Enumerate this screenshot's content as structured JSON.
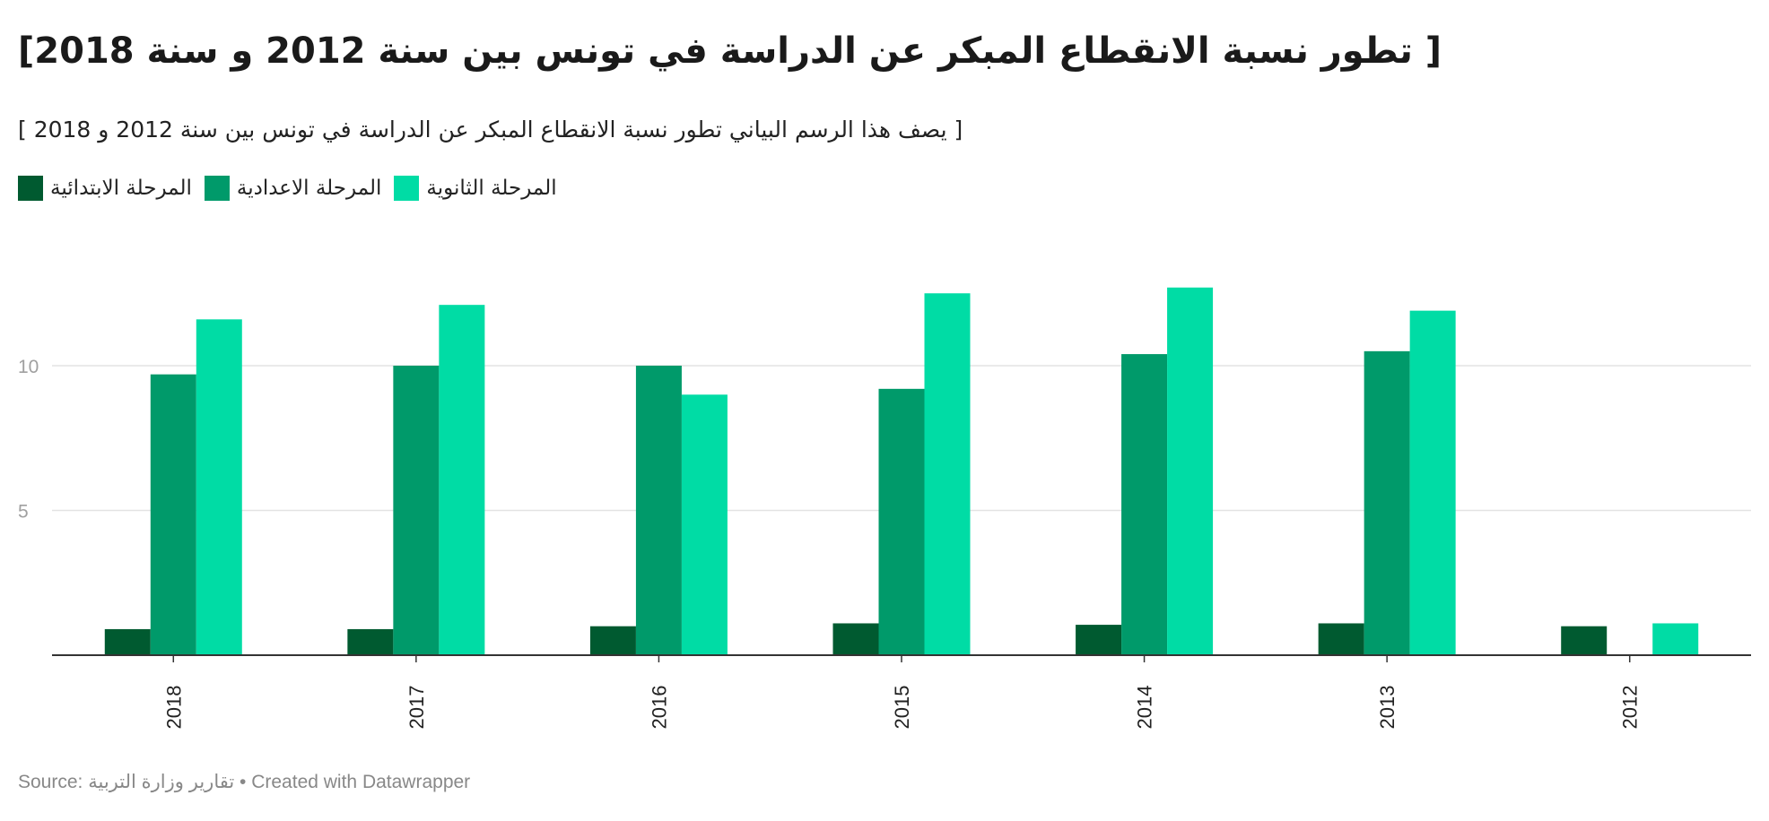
{
  "title": "[  تطور نسبة الانقطاع المبكر عن الدراسة في تونس  بين سنة 2012 و سنة 2018]",
  "subtitle": "[ يصف هذا الرسم البياني تطور نسبة الانقطاع المبكر عن الدراسة في تونس بين سنة 2012 و 2018 ]",
  "footer": {
    "source": "Source: تقارير وزارة التربية",
    "credit": "• Created with Datawrapper"
  },
  "colors": {
    "primary": "#005a30",
    "preparatory": "#009a6a",
    "secondary": "#00dca5"
  },
  "chart_data": {
    "type": "bar",
    "categories": [
      "2018",
      "2017",
      "2016",
      "2015",
      "2014",
      "2013",
      "2012"
    ],
    "series": [
      {
        "name": "المرحلة الابتدائية",
        "color": "#005a30",
        "values": [
          0.9,
          0.9,
          1.0,
          1.1,
          1.05,
          1.1,
          1.0
        ]
      },
      {
        "name": "المرحلة الاعدادية",
        "color": "#009a6a",
        "values": [
          9.7,
          10.0,
          10.0,
          9.2,
          10.4,
          10.5,
          null
        ]
      },
      {
        "name": "المرحلة الثانوية",
        "color": "#00dca5",
        "values": [
          11.6,
          12.1,
          9.0,
          12.5,
          12.7,
          11.9,
          1.1
        ]
      }
    ],
    "yticks": [
      "5",
      "10"
    ],
    "ylim": [
      0,
      13
    ],
    "grid": true,
    "legend": "top-left"
  }
}
